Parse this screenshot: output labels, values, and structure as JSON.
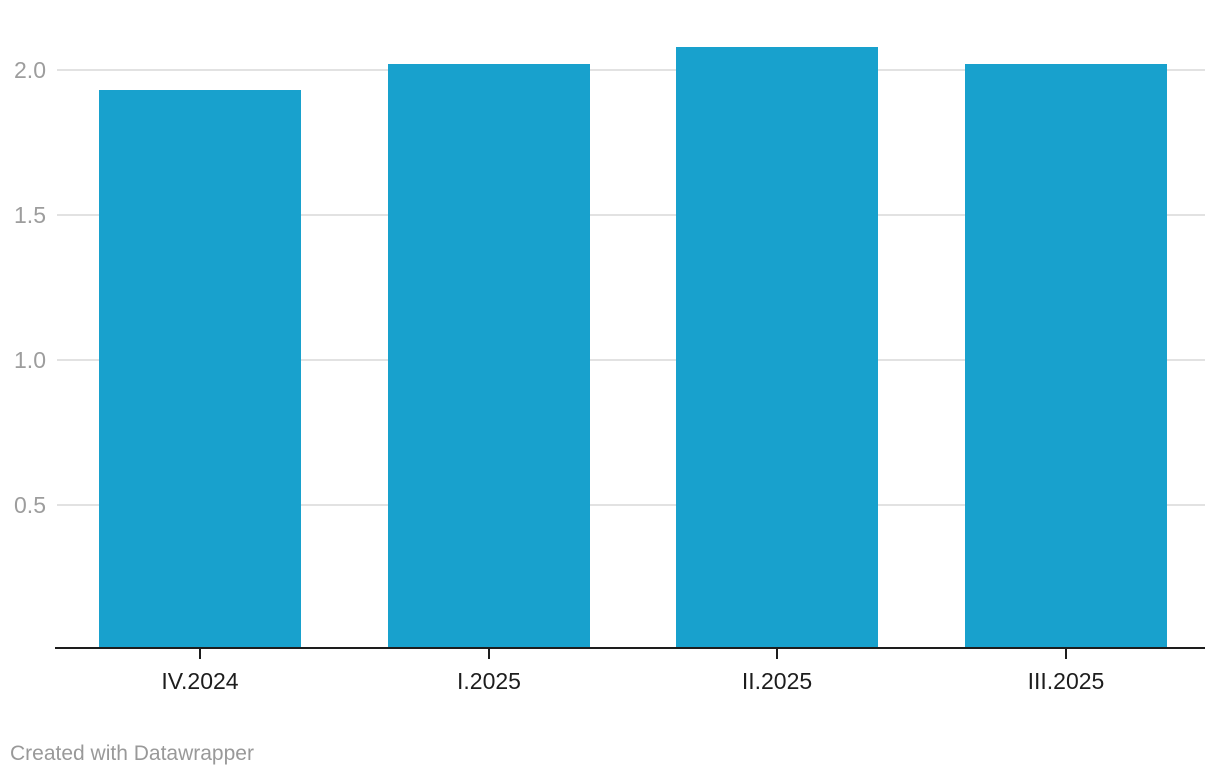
{
  "chart_data": {
    "type": "bar",
    "categories": [
      "IV.2024",
      "I.2025",
      "II.2025",
      "III.2025"
    ],
    "values": [
      1.93,
      2.02,
      2.08,
      2.02
    ],
    "title": "",
    "xlabel": "",
    "ylabel": "",
    "ylim": [
      0,
      2.24
    ],
    "yticks": [
      0.5,
      1.0,
      1.5,
      2.0
    ],
    "ytick_labels": [
      "0.5",
      "1.0",
      "1.5",
      "2.0"
    ],
    "grid": true,
    "legend_position": "none",
    "bar_color": "#18a1cd"
  },
  "footer": {
    "attribution": "Created with Datawrapper"
  },
  "colors": {
    "background": "#ffffff",
    "bar": "#18a1cd",
    "gridline": "#e2e2e2",
    "axis_line": "#1d1d1d",
    "tick": "#1d1d1d",
    "y_label": "#9d9d9d",
    "x_label": "#1d1d1d",
    "attribution": "#999999"
  }
}
